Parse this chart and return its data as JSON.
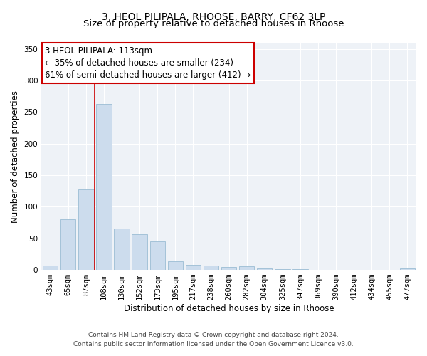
{
  "title": "3, HEOL PILIPALA, RHOOSE, BARRY, CF62 3LP",
  "subtitle": "Size of property relative to detached houses in Rhoose",
  "xlabel": "Distribution of detached houses by size in Rhoose",
  "ylabel": "Number of detached properties",
  "categories": [
    "43sqm",
    "65sqm",
    "87sqm",
    "108sqm",
    "130sqm",
    "152sqm",
    "173sqm",
    "195sqm",
    "217sqm",
    "238sqm",
    "260sqm",
    "282sqm",
    "304sqm",
    "325sqm",
    "347sqm",
    "369sqm",
    "390sqm",
    "412sqm",
    "434sqm",
    "455sqm",
    "477sqm"
  ],
  "values": [
    7,
    80,
    128,
    263,
    65,
    56,
    45,
    14,
    8,
    7,
    5,
    6,
    2,
    1,
    1,
    0,
    0,
    0,
    0,
    0,
    2
  ],
  "bar_color": "#ccdced",
  "bar_edge_color": "#9bbdd4",
  "vline_color": "#cc0000",
  "vline_index": 3,
  "annotation_line1": "3 HEOL PILIPALA: 113sqm",
  "annotation_line2": "← 35% of detached houses are smaller (234)",
  "annotation_line3": "61% of semi-detached houses are larger (412) →",
  "box_edge_color": "#cc0000",
  "ylim": [
    0,
    360
  ],
  "yticks": [
    0,
    50,
    100,
    150,
    200,
    250,
    300,
    350
  ],
  "footer_line1": "Contains HM Land Registry data © Crown copyright and database right 2024.",
  "footer_line2": "Contains public sector information licensed under the Open Government Licence v3.0.",
  "background_color": "#eef2f7",
  "title_fontsize": 10,
  "subtitle_fontsize": 9.5,
  "label_fontsize": 8.5,
  "tick_fontsize": 7.5,
  "annotation_fontsize": 8.5,
  "footer_fontsize": 6.5
}
